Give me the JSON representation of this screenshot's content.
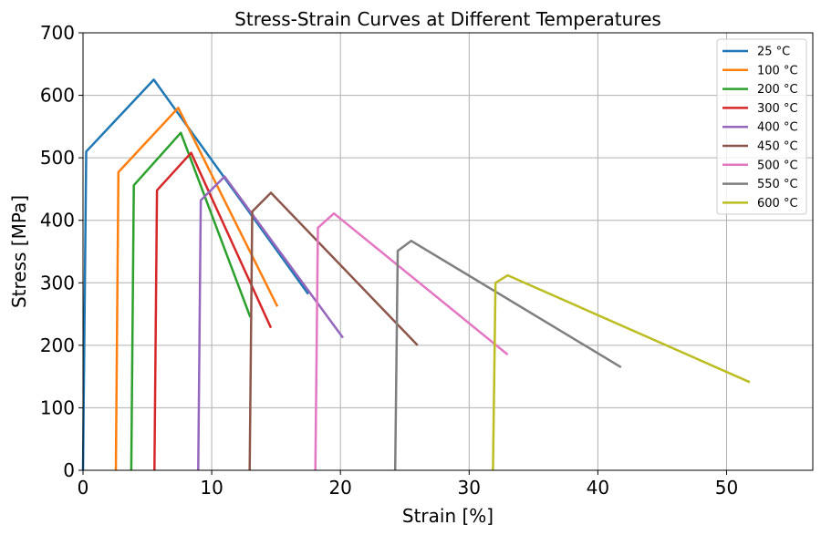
{
  "chart_data": {
    "type": "line",
    "title": "Stress-Strain Curves at Different Temperatures",
    "xlabel": "Strain [%]",
    "ylabel": "Stress [MPa]",
    "xlim": [
      0,
      56.7
    ],
    "ylim": [
      0,
      700
    ],
    "xticks": [
      0,
      10,
      20,
      30,
      40,
      50
    ],
    "yticks": [
      0,
      100,
      200,
      300,
      400,
      500,
      600,
      700
    ],
    "grid": true,
    "legend_position": "top-right",
    "series": [
      {
        "name": "25 °C",
        "color": "#1f77b4",
        "x": [
          0,
          0.25,
          5.5,
          17.5
        ],
        "y": [
          0,
          510,
          625,
          282
        ]
      },
      {
        "name": "100 °C",
        "color": "#ff7f0e",
        "x": [
          2.55,
          2.75,
          7.4,
          15.1
        ],
        "y": [
          0,
          477,
          580,
          262
        ]
      },
      {
        "name": "200 °C",
        "color": "#2ca02c",
        "x": [
          3.75,
          3.95,
          7.6,
          13.0
        ],
        "y": [
          0,
          456,
          540,
          245
        ]
      },
      {
        "name": "300 °C",
        "color": "#d62728",
        "x": [
          5.55,
          5.75,
          8.4,
          14.6
        ],
        "y": [
          0,
          448,
          508,
          228
        ]
      },
      {
        "name": "400 °C",
        "color": "#9467bd",
        "x": [
          8.95,
          9.15,
          11.0,
          20.2
        ],
        "y": [
          0,
          432,
          470,
          212
        ]
      },
      {
        "name": "450 °C",
        "color": "#8c564b",
        "x": [
          12.95,
          13.15,
          14.6,
          26.0
        ],
        "y": [
          0,
          414,
          444,
          200
        ]
      },
      {
        "name": "500 °C",
        "color": "#e377c2",
        "x": [
          18.05,
          18.25,
          19.5,
          33.0
        ],
        "y": [
          0,
          388,
          411,
          185
        ]
      },
      {
        "name": "550 °C",
        "color": "#7f7f7f",
        "x": [
          24.25,
          24.45,
          25.5,
          41.8
        ],
        "y": [
          0,
          351,
          367,
          165
        ]
      },
      {
        "name": "600 °C",
        "color": "#bcbd22",
        "x": [
          31.85,
          32.05,
          33.0,
          51.8
        ],
        "y": [
          0,
          300,
          312,
          141
        ]
      }
    ]
  }
}
